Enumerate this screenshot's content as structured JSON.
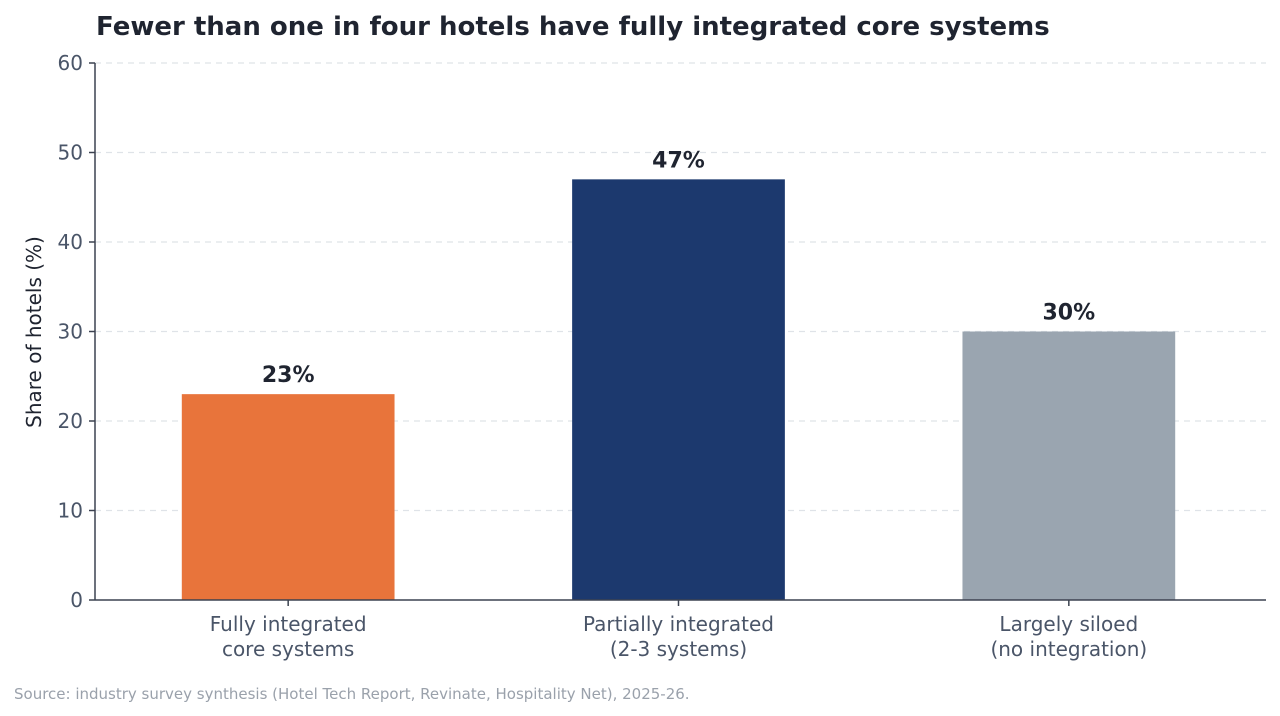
{
  "chart_data": {
    "type": "bar",
    "title": "Fewer than one in four hotels have fully integrated core systems",
    "ylabel": "Share of hotels (%)",
    "xlabel": "",
    "ylim": [
      0,
      60
    ],
    "yticks": [
      0,
      10,
      20,
      30,
      40,
      50,
      60
    ],
    "grid": true,
    "categories": [
      [
        "Fully integrated",
        "core systems"
      ],
      [
        "Partially integrated",
        "(2-3 systems)"
      ],
      [
        "Largely siloed",
        "(no integration)"
      ]
    ],
    "values": [
      23,
      47,
      30
    ],
    "data_labels": [
      "23%",
      "47%",
      "30%"
    ],
    "colors": [
      "#e8743b",
      "#1c396e",
      "#9aa5b0"
    ]
  },
  "source": "Source: industry survey synthesis (Hotel Tech Report, Revinate, Hospitality Net), 2025-26."
}
